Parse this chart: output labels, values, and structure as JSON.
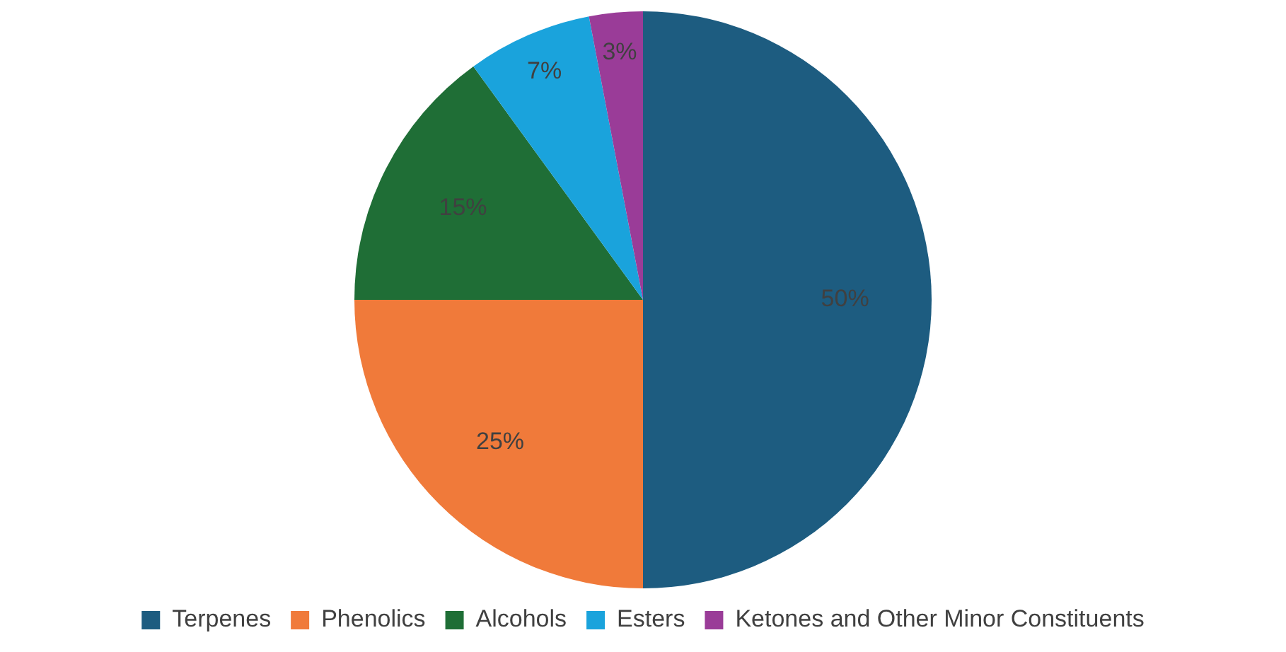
{
  "chart_data": {
    "type": "pie",
    "categories": [
      "Terpenes",
      "Phenolics",
      "Alcohols",
      "Esters",
      "Ketones and Other Minor Constituents"
    ],
    "values": [
      50,
      25,
      15,
      7,
      3
    ],
    "colors": [
      "#1d5c80",
      "#f07a3a",
      "#1f6e36",
      "#1aa3dc",
      "#9a3c98"
    ],
    "value_labels": [
      "50%",
      "25%",
      "15%",
      "7%",
      "3%"
    ],
    "legend": "bottom"
  }
}
